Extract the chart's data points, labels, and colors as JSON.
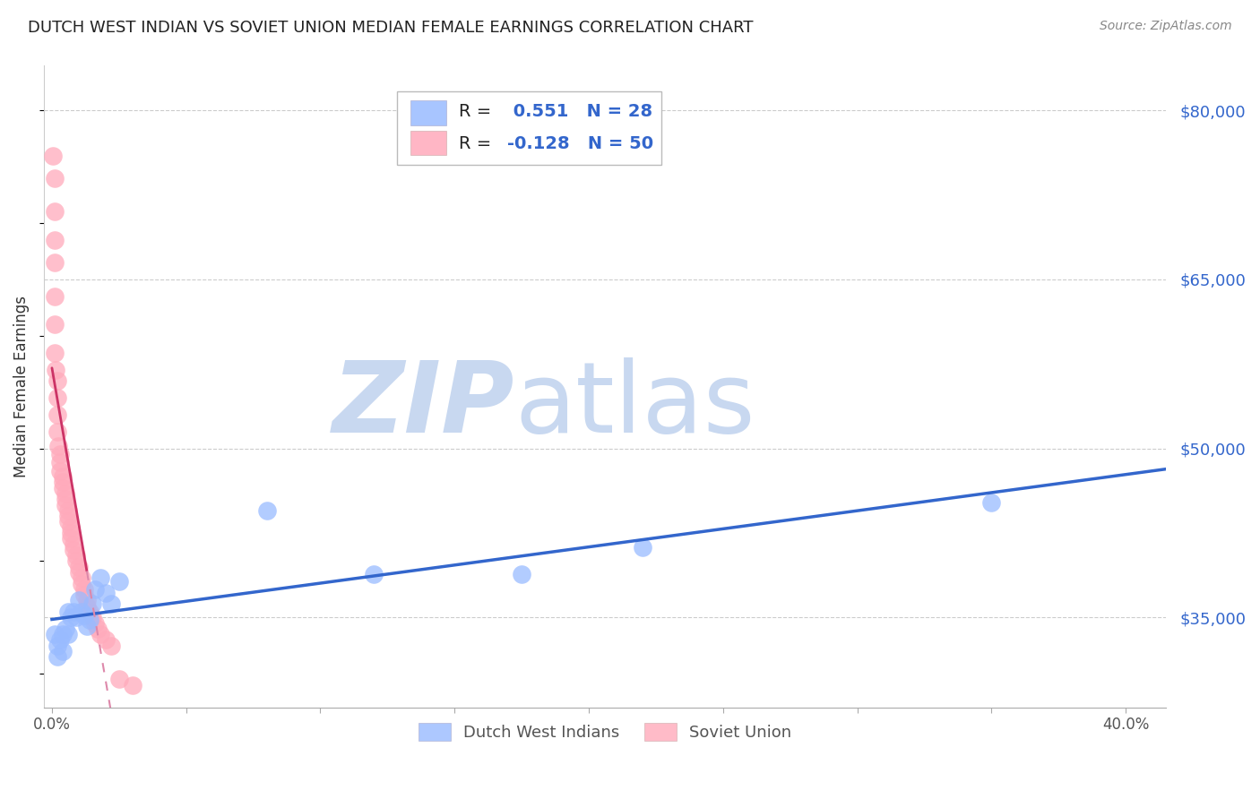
{
  "title": "DUTCH WEST INDIAN VS SOVIET UNION MEDIAN FEMALE EARNINGS CORRELATION CHART",
  "source": "Source: ZipAtlas.com",
  "ylabel": "Median Female Earnings",
  "yticks": [
    35000,
    50000,
    65000,
    80000
  ],
  "ytick_labels": [
    "$35,000",
    "$50,000",
    "$65,000",
    "$80,000"
  ],
  "ymin": 27000,
  "ymax": 84000,
  "xmin": -0.003,
  "xmax": 0.415,
  "blue_R": 0.551,
  "blue_N": 28,
  "pink_R": -0.128,
  "pink_N": 50,
  "blue_color": "#99bbff",
  "pink_color": "#ffaabb",
  "blue_line_color": "#3366cc",
  "pink_line_solid_color": "#cc3366",
  "pink_line_dash_color": "#dd88aa",
  "blue_scatter_x": [
    0.001,
    0.002,
    0.002,
    0.003,
    0.004,
    0.004,
    0.005,
    0.006,
    0.006,
    0.007,
    0.008,
    0.009,
    0.01,
    0.011,
    0.012,
    0.013,
    0.014,
    0.015,
    0.016,
    0.018,
    0.02,
    0.022,
    0.025,
    0.08,
    0.12,
    0.175,
    0.22,
    0.35
  ],
  "blue_scatter_y": [
    33500,
    32500,
    31500,
    33000,
    33500,
    32000,
    34000,
    33500,
    35500,
    35000,
    35500,
    35000,
    36500,
    35500,
    35200,
    34200,
    34800,
    36200,
    37500,
    38500,
    37200,
    36200,
    38200,
    44500,
    38800,
    38800,
    41200,
    45200
  ],
  "pink_scatter_x": [
    0.0005,
    0.001,
    0.001,
    0.001,
    0.001,
    0.001,
    0.001,
    0.001,
    0.0015,
    0.002,
    0.002,
    0.002,
    0.002,
    0.0025,
    0.003,
    0.003,
    0.003,
    0.004,
    0.004,
    0.004,
    0.005,
    0.005,
    0.005,
    0.006,
    0.006,
    0.006,
    0.007,
    0.007,
    0.007,
    0.008,
    0.008,
    0.009,
    0.009,
    0.01,
    0.01,
    0.011,
    0.011,
    0.012,
    0.012,
    0.013,
    0.013,
    0.014,
    0.015,
    0.016,
    0.017,
    0.018,
    0.02,
    0.022,
    0.025,
    0.03
  ],
  "pink_scatter_y": [
    76000,
    74000,
    71000,
    68500,
    66500,
    63500,
    61000,
    58500,
    57000,
    56000,
    54500,
    53000,
    51500,
    50200,
    49500,
    48800,
    48000,
    47500,
    47000,
    46500,
    46000,
    45500,
    45000,
    44500,
    44000,
    43500,
    43000,
    42500,
    42000,
    41500,
    41000,
    40500,
    40000,
    39500,
    39000,
    38500,
    38000,
    37500,
    37000,
    36500,
    36000,
    35500,
    35000,
    34500,
    34000,
    33500,
    33000,
    32500,
    29500,
    29000
  ],
  "background_color": "#ffffff",
  "grid_color": "#cccccc",
  "title_color": "#222222",
  "axis_label_color": "#333333",
  "right_tick_color": "#3366cc",
  "legend_text_color": "#222222",
  "legend_value_color": "#3366cc",
  "watermark_zip_color": "#c8d8f0",
  "watermark_atlas_color": "#c8d8f0",
  "legend_blue_label": "Dutch West Indians",
  "legend_pink_label": "Soviet Union"
}
